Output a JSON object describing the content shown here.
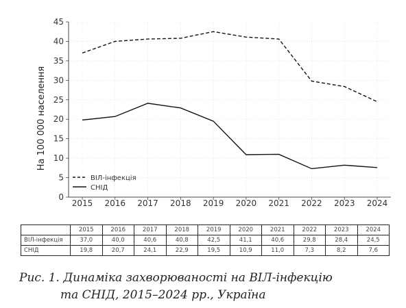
{
  "chart_data": {
    "type": "line",
    "x": [
      "2015",
      "2016",
      "2017",
      "2018",
      "2019",
      "2020",
      "2021",
      "2022",
      "2023",
      "2024"
    ],
    "series": [
      {
        "name": "ВІЛ-інфекція",
        "style": "dashed",
        "color": "#111111",
        "values": [
          37.0,
          40.0,
          40.6,
          40.8,
          42.5,
          41.1,
          40.6,
          29.8,
          28.4,
          24.5
        ]
      },
      {
        "name": "СНІД",
        "style": "solid",
        "color": "#111111",
        "values": [
          19.8,
          20.7,
          24.1,
          22.9,
          19.5,
          10.9,
          11.0,
          7.3,
          8.2,
          7.6
        ]
      }
    ],
    "ylabel": "На 100 000 населення",
    "xlabel": "",
    "ylim": [
      0,
      45
    ],
    "yticks": [
      0,
      5,
      10,
      15,
      20,
      25,
      30,
      35,
      40,
      45
    ],
    "grid": "on",
    "legend_position": "bottom-left"
  },
  "table": {
    "header": [
      "2015",
      "2016",
      "2017",
      "2018",
      "2019",
      "2020",
      "2021",
      "2022",
      "2023",
      "2024"
    ],
    "rows": [
      {
        "label": "ВІЛ-інфекція",
        "values": [
          "37,0",
          "40,0",
          "40,6",
          "40,8",
          "42,5",
          "41,1",
          "40,6",
          "29,8",
          "28,4",
          "24,5"
        ]
      },
      {
        "label": "СНІД",
        "values": [
          "19,8",
          "20,7",
          "24,1",
          "22,9",
          "19,5",
          "10,9",
          "11,0",
          "7,3",
          "8,2",
          "7,6"
        ]
      }
    ]
  },
  "caption": {
    "line1": "Рис. 1. Динаміка захворюваності на ВІЛ-інфекцію",
    "line2": "та СНІД, 2015–2024 рр., Україна"
  }
}
